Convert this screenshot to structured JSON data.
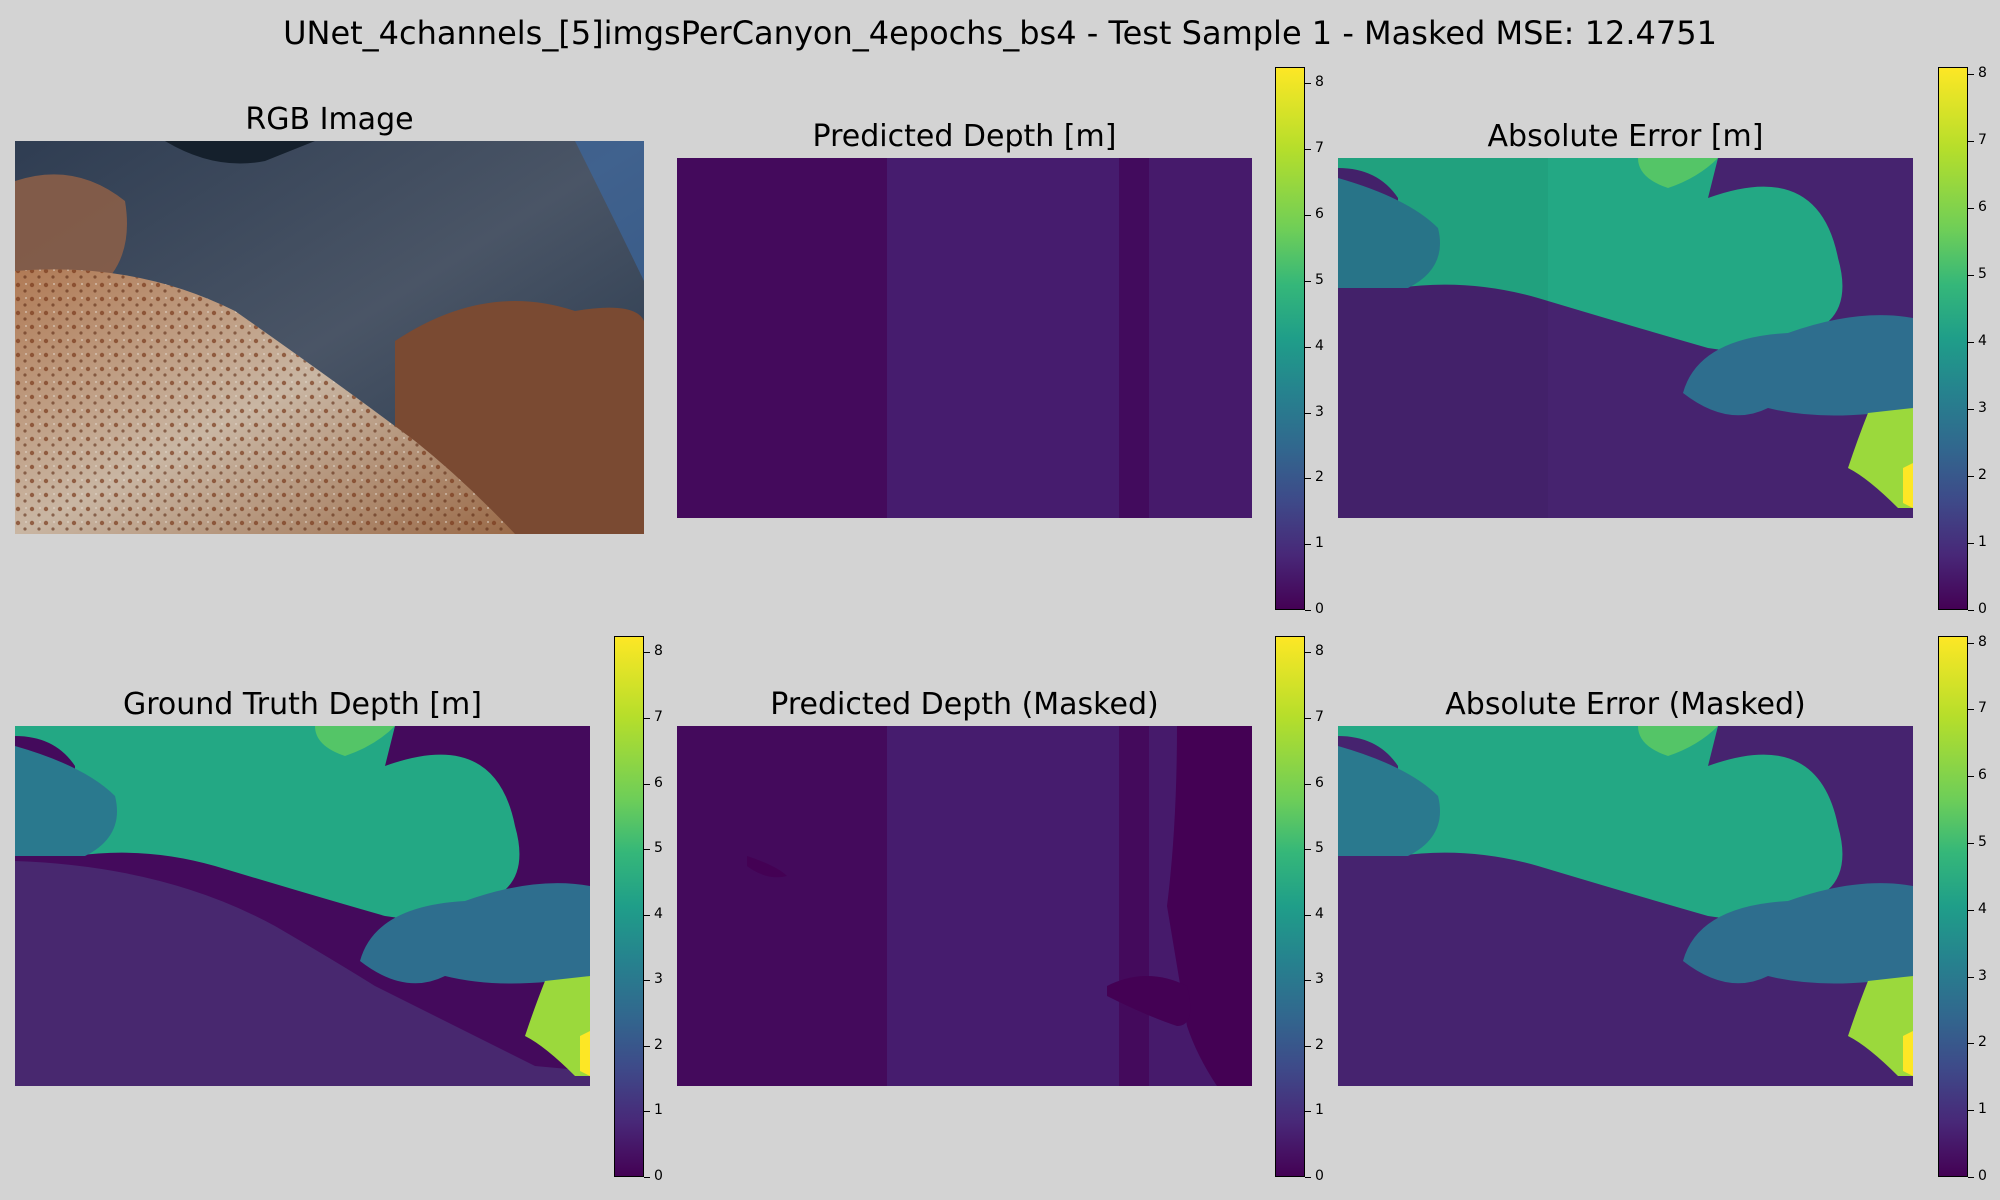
{
  "suptitle": "UNet_4channels_[5]imgsPerCanyon_4epochs_bs4 - Test Sample 1 - Masked MSE: 12.4751",
  "titles": {
    "rgb": "RGB Image",
    "pred": "Predicted Depth [m]",
    "err": "Absolute Error [m]",
    "gt": "Ground Truth Depth [m]",
    "pred_masked": "Predicted Depth (Masked)",
    "err_masked": "Absolute Error (Masked)"
  },
  "colors": {
    "background": "#d3d3d3",
    "colormap": "viridis"
  },
  "chart_data": [
    {
      "type": "heatmap",
      "title": "Predicted Depth [m]",
      "colorbar_ticks": [
        0,
        1,
        2,
        3,
        4,
        5,
        6,
        7,
        8
      ],
      "vmin": 0,
      "vmax": 8.25
    },
    {
      "type": "heatmap",
      "title": "Absolute Error [m]",
      "colorbar_ticks": [
        0,
        1,
        2,
        3,
        4,
        5,
        6,
        7,
        8
      ],
      "vmin": 0,
      "vmax": 8.1
    },
    {
      "type": "heatmap",
      "title": "Ground Truth Depth [m]",
      "colorbar_ticks": [
        0,
        1,
        2,
        3,
        4,
        5,
        6,
        7,
        8
      ],
      "vmin": 0,
      "vmax": 8.25
    },
    {
      "type": "heatmap",
      "title": "Predicted Depth (Masked)",
      "colorbar_ticks": [
        0,
        1,
        2,
        3,
        4,
        5,
        6,
        7,
        8
      ],
      "vmin": 0,
      "vmax": 8.25
    },
    {
      "type": "heatmap",
      "title": "Absolute Error (Masked)",
      "colorbar_ticks": [
        0,
        1,
        2,
        3,
        4,
        5,
        6,
        7,
        8
      ],
      "vmin": 0,
      "vmax": 8.1
    }
  ]
}
